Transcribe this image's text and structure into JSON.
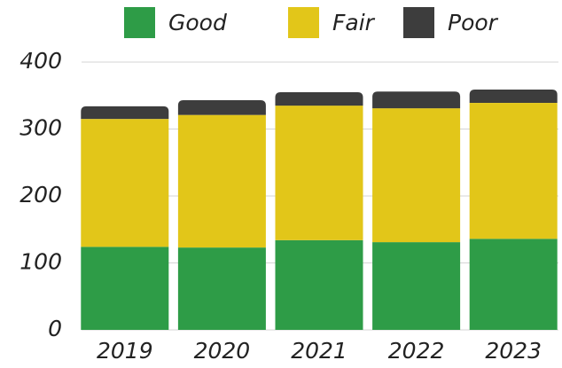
{
  "chart_data": {
    "type": "stacked_bar",
    "categories": [
      "2019",
      "2020",
      "2021",
      "2022",
      "2023"
    ],
    "series": [
      {
        "name": "Good",
        "color": "#2e9c47",
        "values": [
          124,
          123,
          134,
          131,
          136
        ]
      },
      {
        "name": "Fair",
        "color": "#e2c619",
        "values": [
          191,
          198,
          201,
          200,
          203
        ]
      },
      {
        "name": "Poor",
        "color": "#3d3d3d",
        "values": [
          19,
          22,
          20,
          25,
          20
        ]
      }
    ],
    "ylim": [
      0,
      400
    ],
    "yticks": [
      0,
      100,
      200,
      300,
      400
    ],
    "grid": true,
    "legend": "top"
  }
}
